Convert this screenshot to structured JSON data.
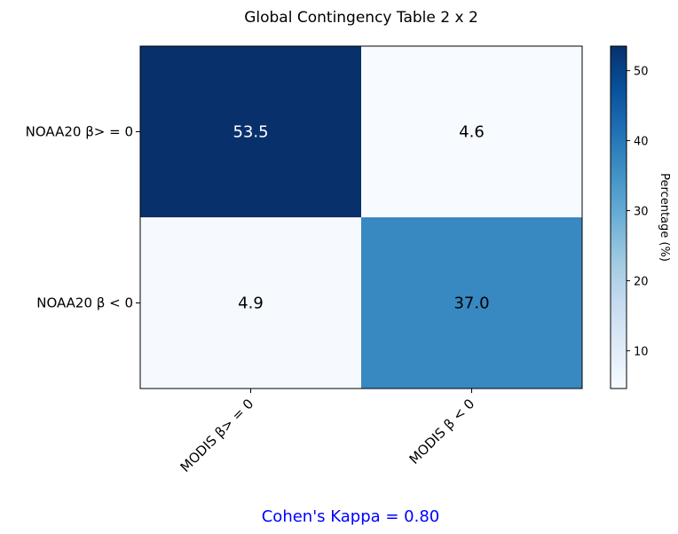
{
  "chart_data": {
    "type": "heatmap",
    "title": "Global Contingency Table 2 x 2",
    "rows": [
      "NOAA20 β> = 0",
      "NOAA20 β < 0"
    ],
    "columns": [
      "MODIS β> = 0",
      "MODIS β < 0"
    ],
    "values": [
      [
        53.5,
        4.6
      ],
      [
        4.9,
        37.0
      ]
    ],
    "value_labels": [
      [
        "53.5",
        "4.6"
      ],
      [
        "4.9",
        "37.0"
      ]
    ],
    "colorbar": {
      "label": "Percentage (%)",
      "range": [
        4.6,
        53.5
      ],
      "ticks": [
        10,
        20,
        30,
        40,
        50
      ],
      "tick_labels": [
        "10",
        "20",
        "30",
        "40",
        "50"
      ],
      "colormap": "Blues"
    },
    "annotation": "Cohen's Kappa = 0.80",
    "annotation_color": "#0000ff"
  }
}
